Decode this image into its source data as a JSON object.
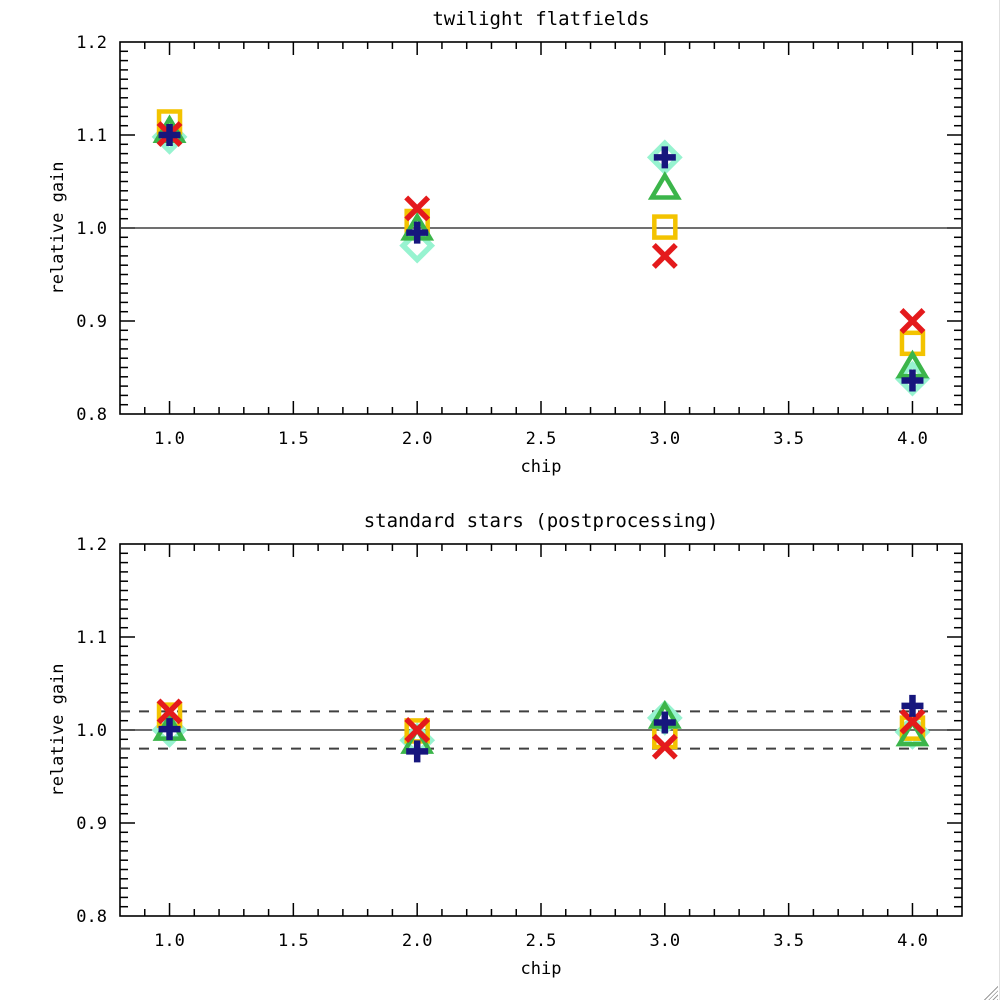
{
  "figure": {
    "background": "#ffffff",
    "text_color": "#000000",
    "axis_color": "#000000",
    "ref_line_color": "#404040",
    "window": {
      "resize_grip_icon": "diagonal-hatch-resize-grip"
    }
  },
  "chart_data": [
    {
      "type": "scatter",
      "title": "twilight flatfields",
      "xlabel": "chip",
      "ylabel": "relative gain",
      "xlim": [
        0.8,
        4.2
      ],
      "ylim": [
        0.8,
        1.2
      ],
      "grid": false,
      "legend_position": "none",
      "x": [
        1.0,
        2.0,
        3.0,
        4.0
      ],
      "xticks": {
        "major": [
          1.0,
          1.5,
          2.0,
          2.5,
          3.0,
          3.5,
          4.0
        ],
        "labels": [
          "1.0",
          "1.5",
          "2.0",
          "2.5",
          "3.0",
          "3.5",
          "4.0"
        ],
        "minor_step": 0.1
      },
      "yticks": {
        "major": [
          0.8,
          0.9,
          1.0,
          1.1,
          1.2
        ],
        "labels": [
          "0.8",
          "0.9",
          "1.0",
          "1.1",
          "1.2"
        ],
        "minor_step": 0.01
      },
      "ref_lines": [
        {
          "y": 1.0,
          "style": "solid"
        }
      ],
      "series": [
        {
          "name": "diamond",
          "marker": "diamond",
          "color": "#97f3d0",
          "values": [
            1.098,
            0.981,
            1.076,
            0.838
          ]
        },
        {
          "name": "square",
          "marker": "square",
          "color": "#f3c300",
          "values": [
            1.114,
            1.007,
            1.001,
            0.876
          ]
        },
        {
          "name": "triangle",
          "marker": "triangle",
          "color": "#3bb54a",
          "values": [
            1.104,
            0.999,
            1.043,
            0.851
          ]
        },
        {
          "name": "cross",
          "marker": "cross",
          "color": "#e41a1c",
          "values": [
            1.101,
            1.021,
            0.97,
            0.9
          ]
        },
        {
          "name": "plus",
          "marker": "plus",
          "color": "#16167d",
          "values": [
            1.1,
            0.995,
            1.076,
            0.836
          ]
        }
      ]
    },
    {
      "type": "scatter",
      "title": "standard stars (postprocessing)",
      "xlabel": "chip",
      "ylabel": "relative gain",
      "xlim": [
        0.8,
        4.2
      ],
      "ylim": [
        0.8,
        1.2
      ],
      "grid": false,
      "legend_position": "none",
      "x": [
        1.0,
        2.0,
        3.0,
        4.0
      ],
      "xticks": {
        "major": [
          1.0,
          1.5,
          2.0,
          2.5,
          3.0,
          3.5,
          4.0
        ],
        "labels": [
          "1.0",
          "1.5",
          "2.0",
          "2.5",
          "3.0",
          "3.5",
          "4.0"
        ],
        "minor_step": 0.1
      },
      "yticks": {
        "major": [
          0.8,
          0.9,
          1.0,
          1.1,
          1.2
        ],
        "labels": [
          "0.8",
          "0.9",
          "1.0",
          "1.1",
          "1.2"
        ],
        "minor_step": 0.01
      },
      "ref_lines": [
        {
          "y": 1.0,
          "style": "solid"
        },
        {
          "y": 1.02,
          "style": "dashed"
        },
        {
          "y": 0.98,
          "style": "dashed"
        }
      ],
      "series": [
        {
          "name": "diamond",
          "marker": "diamond",
          "color": "#97f3d0",
          "values": [
            1.0,
            0.989,
            1.013,
            0.998
          ]
        },
        {
          "name": "square",
          "marker": "square",
          "color": "#f3c300",
          "values": [
            1.016,
            0.999,
            0.993,
            1.002
          ]
        },
        {
          "name": "triangle",
          "marker": "triangle",
          "color": "#3bb54a",
          "values": [
            1.001,
            0.987,
            1.014,
            0.995
          ]
        },
        {
          "name": "cross",
          "marker": "cross",
          "color": "#e41a1c",
          "values": [
            1.02,
            1.0,
            0.982,
            1.009
          ]
        },
        {
          "name": "plus",
          "marker": "plus",
          "color": "#16167d",
          "values": [
            1.001,
            0.977,
            1.008,
            1.026
          ]
        }
      ]
    }
  ]
}
